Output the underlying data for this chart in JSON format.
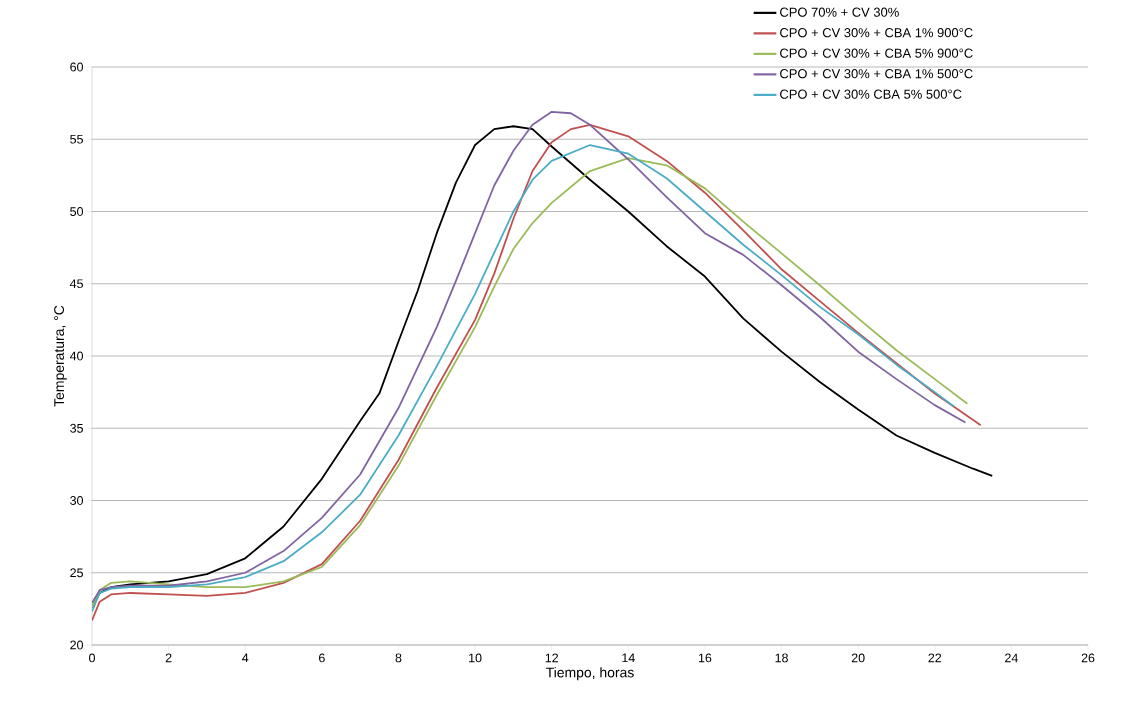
{
  "chart_data": {
    "type": "line",
    "xlabel": "Tiempo, horas",
    "ylabel": "Temperatura, °C",
    "xlim": [
      0,
      26
    ],
    "ylim": [
      20,
      60
    ],
    "xticks": [
      0,
      2,
      4,
      6,
      8,
      10,
      12,
      14,
      16,
      18,
      20,
      22,
      24,
      26
    ],
    "yticks": [
      20,
      25,
      30,
      35,
      40,
      45,
      50,
      55,
      60
    ],
    "grid": "y",
    "legend": "top right",
    "marker": "none",
    "line_style": "solid",
    "series": [
      {
        "name": "CPO 70% + CV 30%",
        "color": "#000000",
        "x": [
          0,
          0.2,
          0.5,
          1,
          2,
          3,
          4,
          5,
          6,
          7,
          7.5,
          8,
          8.5,
          9,
          9.5,
          10,
          10.5,
          11,
          11.5,
          12,
          13,
          14,
          15,
          16,
          17,
          18,
          19,
          20,
          21,
          22,
          23,
          23.5
        ],
        "values": [
          22.6,
          23.6,
          24.0,
          24.2,
          24.4,
          24.9,
          26.0,
          28.2,
          31.5,
          35.5,
          37.4,
          41.0,
          44.5,
          48.5,
          52.0,
          54.6,
          55.7,
          55.9,
          55.7,
          54.5,
          52.2,
          50.0,
          47.6,
          45.5,
          42.6,
          40.3,
          38.2,
          36.3,
          34.5,
          33.3,
          32.2,
          31.7
        ]
      },
      {
        "name": "CPO + CV 30% + CBA 1% 900°C",
        "color": "#c0504d",
        "x": [
          0,
          0.2,
          0.5,
          1,
          2,
          3,
          4,
          5,
          6,
          7,
          8,
          9,
          10,
          10.5,
          11,
          11.5,
          12,
          12.5,
          13,
          14,
          15,
          16,
          17,
          18,
          19,
          20,
          21,
          22,
          23.2
        ],
        "values": [
          21.7,
          23.0,
          23.5,
          23.6,
          23.5,
          23.4,
          23.6,
          24.3,
          25.6,
          28.6,
          32.8,
          37.8,
          42.5,
          45.7,
          49.5,
          52.8,
          54.8,
          55.7,
          56.0,
          55.2,
          53.5,
          51.3,
          48.7,
          46.0,
          43.8,
          41.6,
          39.5,
          37.4,
          35.2
        ]
      },
      {
        "name": "CPO + CV 30% + CBA 5% 900°C",
        "color": "#9bbb59",
        "x": [
          0,
          0.2,
          0.5,
          1,
          2,
          3,
          4,
          5,
          6,
          7,
          8,
          9,
          10,
          10.5,
          11,
          11.5,
          12,
          13,
          14,
          15,
          16,
          17,
          18,
          19,
          20,
          21,
          22,
          22.85
        ],
        "values": [
          22.6,
          23.8,
          24.3,
          24.4,
          24.2,
          24.0,
          24.0,
          24.4,
          25.4,
          28.3,
          32.4,
          37.3,
          42.0,
          44.8,
          47.4,
          49.2,
          50.6,
          52.8,
          53.7,
          53.2,
          51.6,
          49.3,
          47.1,
          44.9,
          42.6,
          40.4,
          38.4,
          36.7
        ]
      },
      {
        "name": "CPO + CV 30% + CBA 1% 500°C",
        "color": "#8064a2",
        "x": [
          0,
          0.2,
          0.5,
          1,
          2,
          3,
          4,
          5,
          6,
          7,
          8,
          9,
          9.5,
          10,
          10.5,
          11,
          11.5,
          12,
          12.5,
          13,
          14,
          15,
          16,
          17,
          18,
          19,
          20,
          21,
          22,
          22.8
        ],
        "values": [
          22.9,
          23.8,
          24.0,
          24.1,
          24.1,
          24.4,
          25.0,
          26.5,
          28.8,
          31.8,
          36.4,
          42.0,
          45.2,
          48.5,
          51.8,
          54.2,
          56.0,
          56.9,
          56.8,
          56.0,
          53.6,
          51.0,
          48.5,
          47.0,
          44.9,
          42.7,
          40.3,
          38.4,
          36.6,
          35.4
        ]
      },
      {
        "name": "CPO + CV 30% CBA 5% 500°C",
        "color": "#4bacc6",
        "x": [
          0,
          0.2,
          0.5,
          1,
          2,
          3,
          4,
          5,
          6,
          7,
          8,
          9,
          10,
          11,
          11.5,
          12,
          13,
          14,
          15,
          16,
          17,
          18,
          19,
          20,
          21,
          22,
          22.5
        ],
        "values": [
          22.3,
          23.6,
          23.9,
          24.0,
          24.0,
          24.2,
          24.7,
          25.8,
          27.8,
          30.4,
          34.5,
          39.3,
          44.3,
          50.0,
          52.2,
          53.5,
          54.6,
          54.0,
          52.3,
          50.0,
          47.7,
          45.6,
          43.4,
          41.5,
          39.4,
          37.5,
          36.5
        ]
      }
    ]
  }
}
